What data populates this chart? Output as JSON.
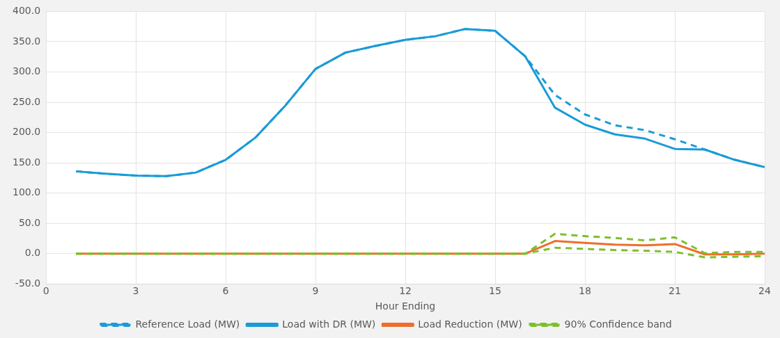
{
  "chart_data": {
    "type": "line",
    "xlabel": "Hour Ending",
    "x": [
      1,
      2,
      3,
      4,
      5,
      6,
      7,
      8,
      9,
      10,
      11,
      12,
      13,
      14,
      15,
      16,
      17,
      18,
      19,
      20,
      21,
      22,
      23,
      24
    ],
    "series": [
      {
        "name": "Reference Load (MW)",
        "color": "#1a9bd7",
        "line_style": "dashed",
        "values": [
          136,
          132,
          129,
          128,
          134,
          155,
          192,
          245,
          305,
          332,
          343,
          353,
          359,
          371,
          368,
          326,
          262,
          230,
          212,
          204,
          189,
          172,
          155,
          143
        ]
      },
      {
        "name": "Load with DR (MW)",
        "color": "#1a9bd7",
        "line_style": "solid",
        "values": [
          136,
          132,
          129,
          128,
          134,
          155,
          192,
          245,
          305,
          332,
          343,
          353,
          359,
          371,
          368,
          326,
          241,
          213,
          197,
          190,
          173,
          172,
          155,
          143
        ]
      },
      {
        "name": "Load Reduction (MW)",
        "color": "#ec6f2d",
        "line_style": "solid",
        "values": [
          0,
          0,
          0,
          0,
          0,
          0,
          0,
          0,
          0,
          0,
          0,
          0,
          0,
          0,
          0,
          0,
          21,
          18,
          15,
          14,
          16,
          -1,
          -1,
          0
        ]
      },
      {
        "name": "90% Confidence band",
        "color": "#7dc02c",
        "line_style": "dashed",
        "values": [
          0,
          0,
          0,
          0,
          0,
          0,
          0,
          0,
          0,
          0,
          0,
          0,
          0,
          0,
          0,
          0,
          33,
          29,
          26,
          22,
          27,
          1,
          3,
          3
        ]
      },
      {
        "color": "#7dc02c",
        "line_style": "dashed",
        "values": [
          0,
          0,
          0,
          0,
          0,
          0,
          0,
          0,
          0,
          0,
          0,
          0,
          0,
          0,
          0,
          0,
          10,
          8,
          6,
          5,
          3,
          -6,
          -5,
          -4
        ]
      }
    ],
    "xlim": [
      0,
      24
    ],
    "xticks": [
      0,
      3,
      6,
      9,
      12,
      15,
      18,
      21,
      24
    ],
    "ylim": [
      -50,
      400
    ],
    "yticks": [
      {
        "value": -50,
        "label": "-50.0"
      },
      {
        "value": 0,
        "label": "0.0"
      },
      {
        "value": 50,
        "label": "50.0"
      },
      {
        "value": 100,
        "label": "100.0"
      },
      {
        "value": 150,
        "label": "150.0"
      },
      {
        "value": 200,
        "label": "200.0"
      },
      {
        "value": 250,
        "label": "250.0"
      },
      {
        "value": 300,
        "label": "300.0"
      },
      {
        "value": 350,
        "label": "350.0"
      },
      {
        "value": 400,
        "label": "400.0"
      }
    ],
    "grid": true,
    "legend": "bottom",
    "marker": "none"
  }
}
